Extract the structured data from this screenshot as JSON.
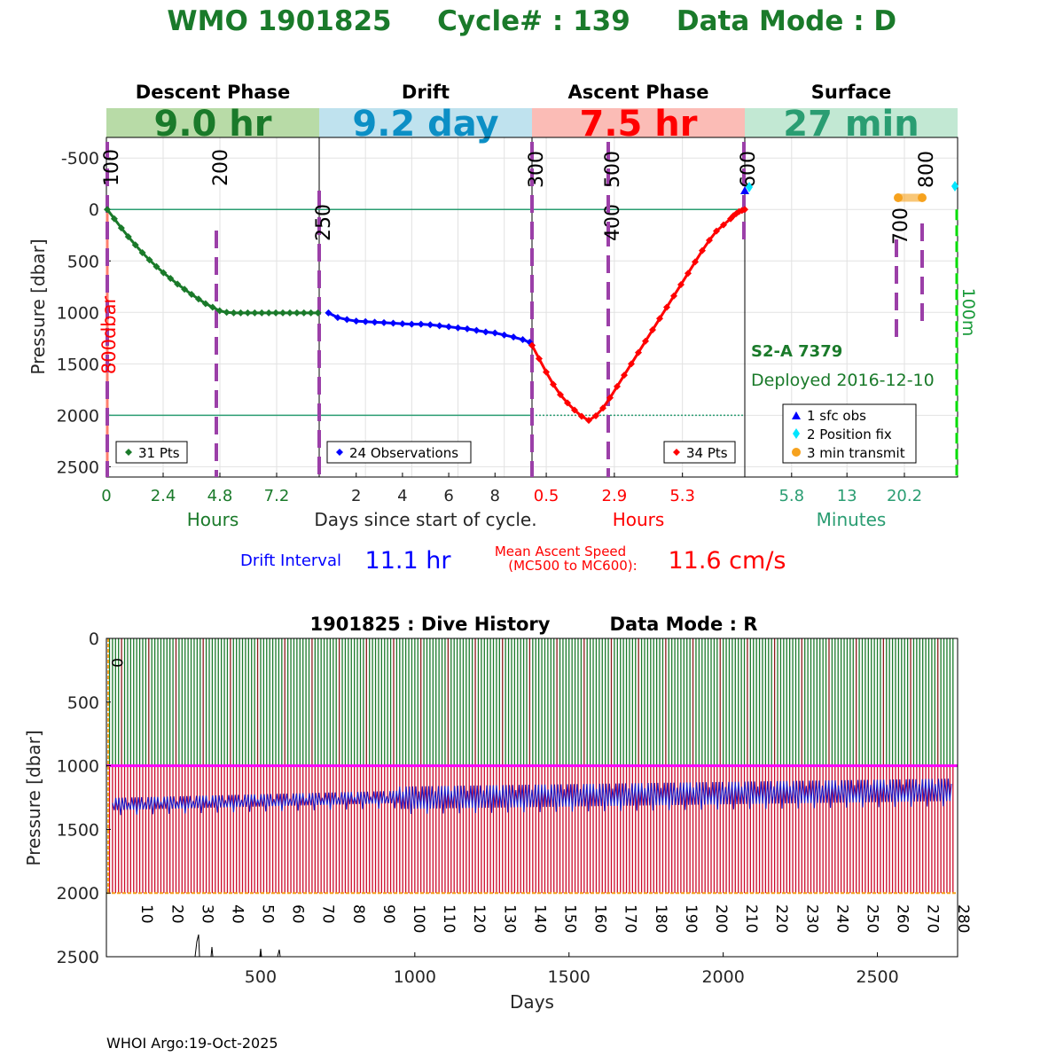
{
  "title": {
    "wmo": "WMO 1901825",
    "cycle": "Cycle# : 139",
    "mode": "Data Mode : D"
  },
  "phases": [
    {
      "name": "Descent Phase",
      "duration": "9.0 hr",
      "band_color": "#b8dba7",
      "text_color": "#1a7a2a"
    },
    {
      "name": "Drift",
      "duration": "9.2 day",
      "band_color": "#bfe2ee",
      "text_color": "#0c8fc5"
    },
    {
      "name": "Ascent Phase",
      "duration": "7.5 hr",
      "band_color": "#fbbcb6",
      "text_color": "#ff0000"
    },
    {
      "name": "Surface",
      "duration": "27 min",
      "band_color": "#c2e8d3",
      "text_color": "#2a9d72"
    }
  ],
  "colors": {
    "title": "#1a7a2a",
    "descent": "#1a7a2a",
    "drift": "#0000ff",
    "ascent": "#ff0000",
    "surface": "#2a9d72",
    "marker": "#9b3fa8",
    "ref_line": "#2a9d72",
    "transmit": "#f6a21e",
    "fix": "#00e5ff",
    "magenta": "#ff00ff",
    "bright_green": "#00dd00"
  },
  "top_chart": {
    "ylabel": "Pressure [dbar]",
    "yticks": [
      "-500",
      "0",
      "500",
      "1000",
      "1500",
      "2000",
      "2500"
    ],
    "ytick_values": [
      -500,
      0,
      500,
      1000,
      1500,
      2000,
      2500
    ],
    "ylim": [
      -700,
      2600
    ],
    "descent_ticks": [
      "0",
      "2.4",
      "4.8",
      "7.2"
    ],
    "drift_ticks": [
      "2",
      "4",
      "6",
      "8"
    ],
    "ascent_ticks": [
      "0.5",
      "2.9",
      "5.3"
    ],
    "surface_ticks": [
      "5.8",
      "13",
      "20.2"
    ],
    "descent_unit": "Hours",
    "drift_unit": "Days since start of cycle.",
    "ascent_unit": "Hours",
    "surface_unit": "Minutes",
    "mission_codes": [
      {
        "label": "100"
      },
      {
        "label": "200"
      },
      {
        "label": "250"
      },
      {
        "label": "300"
      },
      {
        "label": "400"
      },
      {
        "label": "500"
      },
      {
        "label": "600"
      },
      {
        "label": "700"
      },
      {
        "label": "800"
      }
    ],
    "side_labels": {
      "left": "800dbar",
      "right": "100m"
    },
    "legend_descent": "31 Pts",
    "legend_drift": "24 Observations",
    "legend_ascent": "34 Pts",
    "float_model": "S2-A 7379",
    "deployed": "Deployed 2016-12-10",
    "surface_legend": [
      "1 sfc obs",
      "2 Position fix",
      "3 min transmit"
    ]
  },
  "chart_data": [
    {
      "type": "line",
      "name": "cycle-profile",
      "series": [
        {
          "phase": "descent",
          "x_hours": [
            0,
            0.3,
            0.6,
            0.9,
            1.2,
            1.5,
            1.8,
            2.1,
            2.4,
            2.7,
            3.0,
            3.3,
            3.6,
            3.9,
            4.2,
            4.5,
            4.8,
            5.1,
            5.4,
            5.7,
            6.0,
            6.3,
            6.6,
            6.9,
            7.2,
            7.5,
            7.8,
            8.1,
            8.4,
            8.7,
            9.0
          ],
          "pressure": [
            0,
            90,
            180,
            265,
            345,
            420,
            490,
            555,
            615,
            670,
            725,
            775,
            825,
            870,
            915,
            950,
            985,
            1000,
            1005,
            1005,
            1005,
            1005,
            1005,
            1005,
            1005,
            1005,
            1005,
            1005,
            1005,
            1005,
            1005
          ]
        },
        {
          "phase": "drift",
          "x_days": [
            0.4,
            0.8,
            1.2,
            1.6,
            2.0,
            2.4,
            2.8,
            3.2,
            3.6,
            4.0,
            4.4,
            4.8,
            5.2,
            5.6,
            6.0,
            6.4,
            6.8,
            7.2,
            7.6,
            8.0,
            8.4,
            8.8,
            9.1,
            9.2
          ],
          "pressure": [
            1005,
            1050,
            1070,
            1085,
            1090,
            1095,
            1100,
            1105,
            1110,
            1115,
            1115,
            1120,
            1130,
            1140,
            1150,
            1160,
            1175,
            1190,
            1200,
            1220,
            1240,
            1265,
            1290,
            1320
          ]
        },
        {
          "phase": "ascent",
          "x_hours": [
            0.0,
            0.25,
            0.5,
            0.75,
            1.0,
            1.25,
            1.5,
            1.75,
            2.0,
            2.25,
            2.5,
            2.75,
            3.0,
            3.25,
            3.5,
            3.75,
            4.0,
            4.25,
            4.5,
            4.75,
            5.0,
            5.25,
            5.5,
            5.75,
            6.0,
            6.25,
            6.5,
            6.75,
            7.0,
            7.1,
            7.2,
            7.3,
            7.4,
            7.5
          ],
          "pressure": [
            1320,
            1450,
            1580,
            1700,
            1800,
            1880,
            1950,
            2010,
            2050,
            2005,
            1930,
            1830,
            1720,
            1610,
            1500,
            1390,
            1280,
            1170,
            1060,
            950,
            840,
            730,
            620,
            510,
            400,
            300,
            210,
            150,
            90,
            60,
            40,
            20,
            10,
            0
          ]
        }
      ],
      "reference_lines": [
        0,
        2000
      ]
    },
    {
      "type": "bar",
      "name": "dive-history",
      "title": "1901825 : Dive History",
      "mode": "Data Mode : R",
      "xlabel": "Days",
      "ylabel": "Pressure [dbar]",
      "xlim": [
        0,
        2760
      ],
      "ylim": [
        0,
        2500
      ],
      "xticks": [
        500,
        1000,
        1500,
        2000,
        2500
      ],
      "yticks": [
        0,
        500,
        1000,
        1500,
        2000,
        2500
      ],
      "cycle_labels": [
        "0",
        "10",
        "20",
        "30",
        "40",
        "50",
        "60",
        "70",
        "80",
        "90",
        "100",
        "110",
        "120",
        "130",
        "140",
        "150",
        "160",
        "170",
        "180",
        "190",
        "200",
        "210",
        "220",
        "230",
        "240",
        "250",
        "260",
        "270",
        "280"
      ],
      "n_cycles": 280,
      "park_pressure": 1000,
      "profile_pressure": 2000,
      "drift_band_low": [
        1250,
        1300
      ],
      "drift_band_high": [
        1050,
        1200
      ]
    }
  ],
  "footer": "WHOI Argo:19-Oct-2025"
}
